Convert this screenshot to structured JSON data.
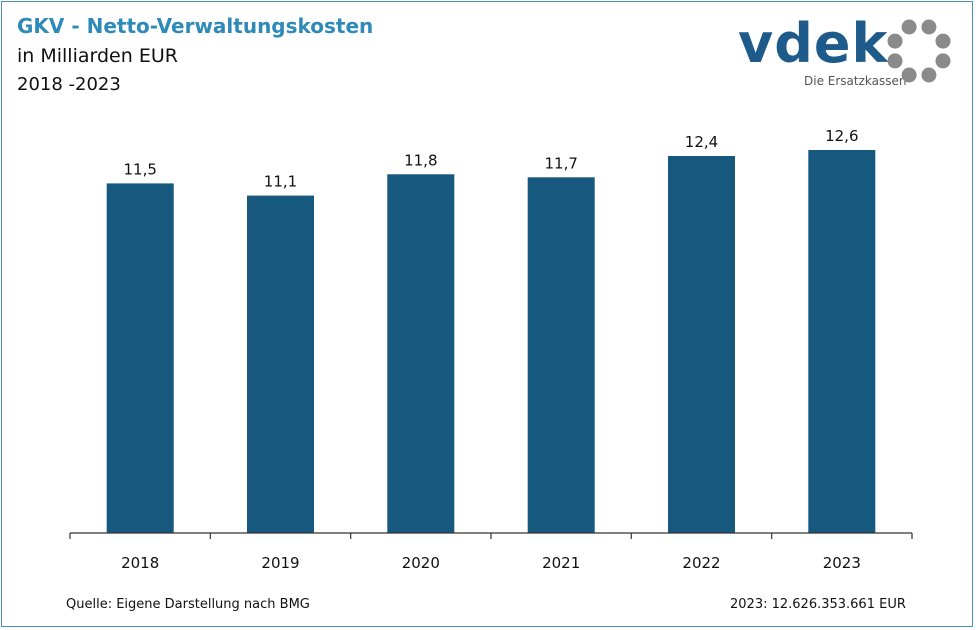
{
  "header": {
    "title": "GKV - Netto-Verwaltungskosten",
    "subtitle": "in Milliarden EUR",
    "period": "2018 -2023"
  },
  "logo": {
    "word": "vdek",
    "tagline": "Die Ersatzkassen",
    "color": "#1e5a8a",
    "ring_color": "#8a8a8a"
  },
  "chart_data": {
    "type": "bar",
    "categories": [
      "2018",
      "2019",
      "2020",
      "2021",
      "2022",
      "2023"
    ],
    "values": [
      11.5,
      11.1,
      11.8,
      11.7,
      12.4,
      12.6
    ],
    "value_labels": [
      "11,5",
      "11,1",
      "11,8",
      "11,7",
      "12,4",
      "12,6"
    ],
    "ylim": [
      0,
      15
    ],
    "bar_color": "#17587f",
    "grid": false,
    "legend": "none"
  },
  "footer": {
    "source": "Quelle: Eigene Darstellung nach BMG",
    "note": "2023: 12.626.353.661  EUR"
  }
}
